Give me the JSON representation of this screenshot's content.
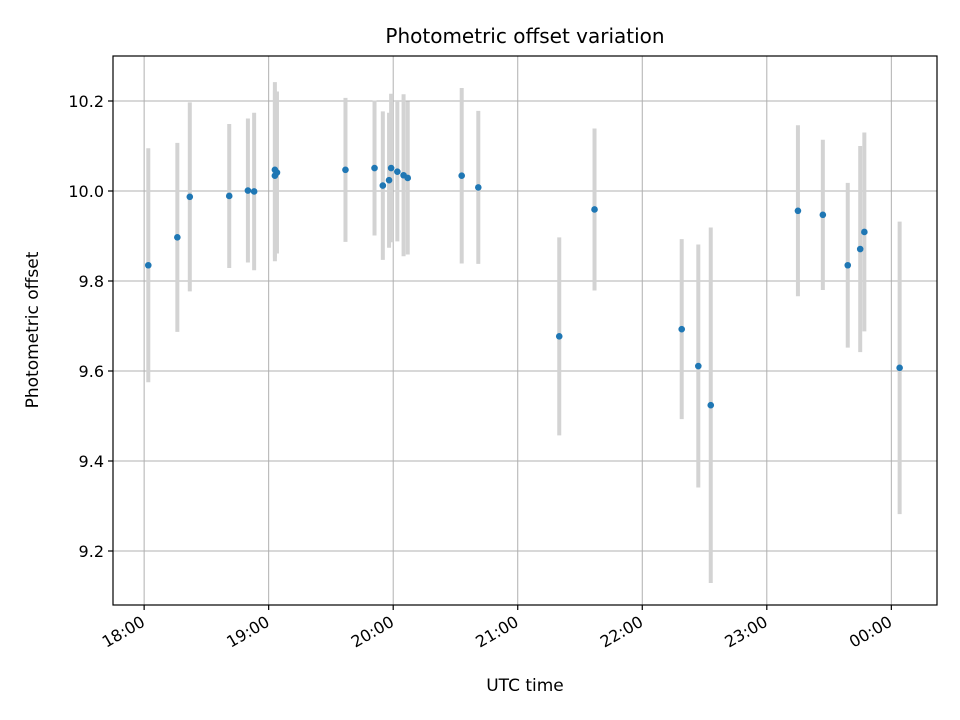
{
  "chart_data": {
    "type": "scatter",
    "title": "Photometric offset variation",
    "xlabel": "UTC time",
    "ylabel": "Photometric offset",
    "x_axis": "time (hours, UTC)",
    "xlim": [
      "17:45",
      "00:22"
    ],
    "ylim": [
      9.08,
      10.3
    ],
    "x_ticks": [
      "18:00",
      "19:00",
      "20:00",
      "21:00",
      "22:00",
      "23:00",
      "00:00"
    ],
    "y_ticks": [
      "9.2",
      "9.4",
      "9.6",
      "9.8",
      "10.0",
      "10.2"
    ],
    "grid": true,
    "colors": {
      "point": "#1f77b4",
      "errorbar": "#d3d3d3",
      "grid": "#b0b0b0"
    },
    "points": [
      {
        "t": "18:02",
        "y": 9.835,
        "err": 0.26
      },
      {
        "t": "18:16",
        "y": 9.897,
        "err": 0.21
      },
      {
        "t": "18:22",
        "y": 9.987,
        "err": 0.21
      },
      {
        "t": "18:41",
        "y": 9.989,
        "err": 0.16
      },
      {
        "t": "18:50",
        "y": 10.001,
        "err": 0.16
      },
      {
        "t": "18:53",
        "y": 9.999,
        "err": 0.175
      },
      {
        "t": "19:03",
        "y": 10.034,
        "err": 0.19
      },
      {
        "t": "19:03",
        "y": 10.047,
        "err": 0.195
      },
      {
        "t": "19:04",
        "y": 10.041,
        "err": 0.18
      },
      {
        "t": "19:37",
        "y": 10.047,
        "err": 0.16
      },
      {
        "t": "19:51",
        "y": 10.051,
        "err": 0.15
      },
      {
        "t": "19:55",
        "y": 10.012,
        "err": 0.165
      },
      {
        "t": "19:58",
        "y": 10.024,
        "err": 0.15
      },
      {
        "t": "19:59",
        "y": 10.051,
        "err": 0.165
      },
      {
        "t": "20:02",
        "y": 10.043,
        "err": 0.155
      },
      {
        "t": "20:05",
        "y": 10.035,
        "err": 0.18
      },
      {
        "t": "20:07",
        "y": 10.029,
        "err": 0.17
      },
      {
        "t": "20:33",
        "y": 10.034,
        "err": 0.195
      },
      {
        "t": "20:41",
        "y": 10.008,
        "err": 0.17
      },
      {
        "t": "21:20",
        "y": 9.677,
        "err": 0.22
      },
      {
        "t": "21:37",
        "y": 9.959,
        "err": 0.18
      },
      {
        "t": "22:19",
        "y": 9.693,
        "err": 0.2
      },
      {
        "t": "22:27",
        "y": 9.611,
        "err": 0.27
      },
      {
        "t": "22:33",
        "y": 9.524,
        "err": 0.395
      },
      {
        "t": "23:15",
        "y": 9.956,
        "err": 0.19
      },
      {
        "t": "23:27",
        "y": 9.947,
        "err": 0.167
      },
      {
        "t": "23:39",
        "y": 9.835,
        "err": 0.183
      },
      {
        "t": "23:45",
        "y": 9.871,
        "err": 0.229
      },
      {
        "t": "23:47",
        "y": 9.909,
        "err": 0.221
      },
      {
        "t": "00:04",
        "y": 9.607,
        "err": 0.325
      }
    ]
  }
}
